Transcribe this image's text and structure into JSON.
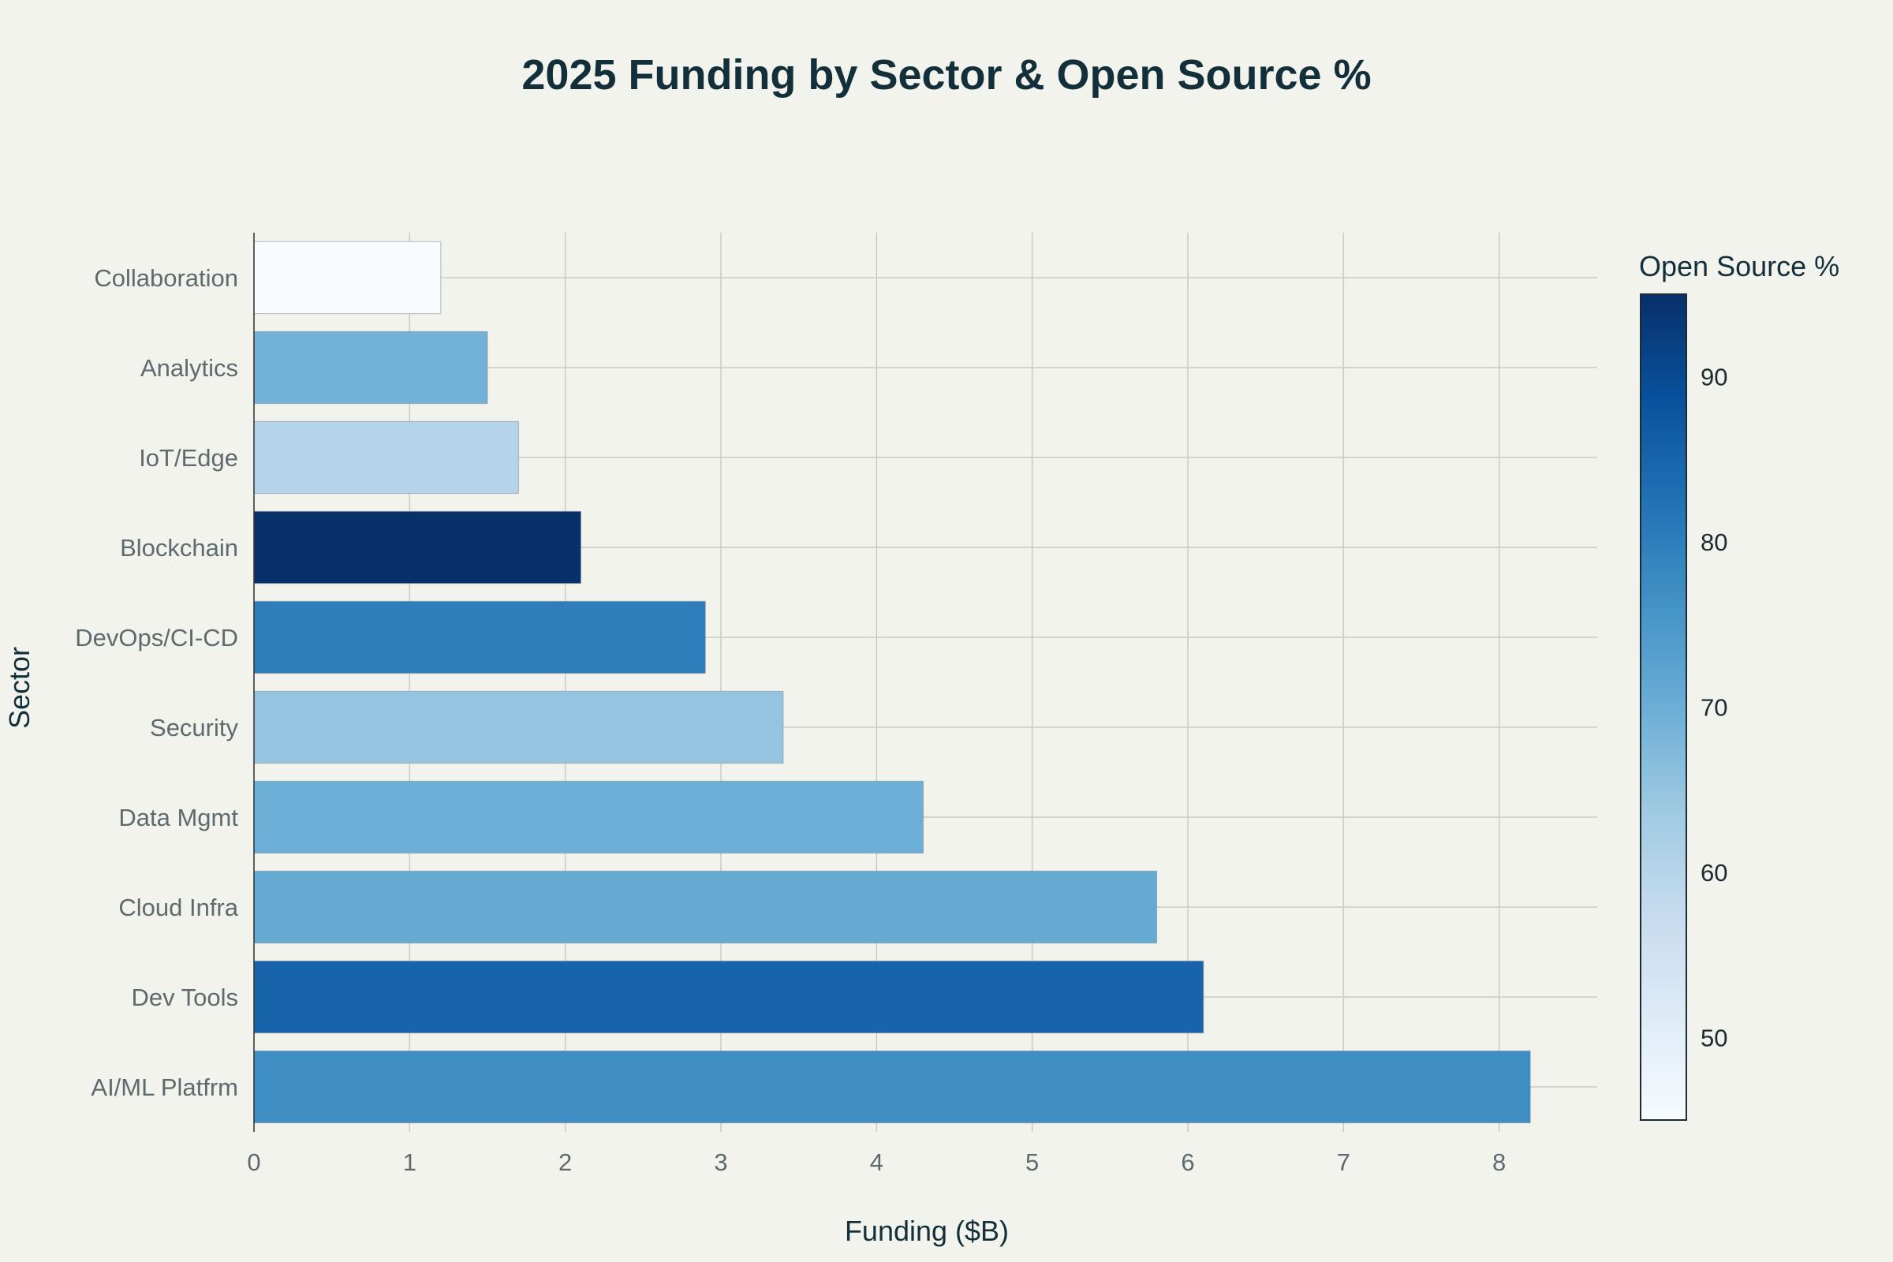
{
  "chart_data": {
    "type": "bar",
    "orientation": "horizontal",
    "title": "2025 Funding by Sector & Open Source %",
    "xlabel": "Funding ($B)",
    "ylabel": "Sector",
    "xlim": [
      0,
      8.63
    ],
    "xticks": [
      0,
      1,
      2,
      3,
      4,
      5,
      6,
      7,
      8
    ],
    "grid": true,
    "categories": [
      "AI/ML Platfrm",
      "Dev Tools",
      "Cloud Infra",
      "Data Mgmt",
      "Security",
      "DevOps/CI-CD",
      "Blockchain",
      "IoT/Edge",
      "Analytics",
      "Collaboration"
    ],
    "values": [
      8.2,
      6.1,
      5.8,
      4.3,
      3.4,
      2.9,
      2.1,
      1.7,
      1.5,
      1.2
    ],
    "color_values": [
      77,
      85,
      71,
      70,
      65,
      80,
      95,
      60,
      69,
      45
    ],
    "colorbar": {
      "title": "Open Source %",
      "range": [
        45,
        95
      ],
      "ticks": [
        50,
        60,
        70,
        80,
        90
      ],
      "colorscale": [
        "#f7fbff",
        "#deebf7",
        "#c6dbef",
        "#9ecae1",
        "#6baed6",
        "#4292c6",
        "#2171b5",
        "#08519c",
        "#08306b"
      ]
    }
  }
}
